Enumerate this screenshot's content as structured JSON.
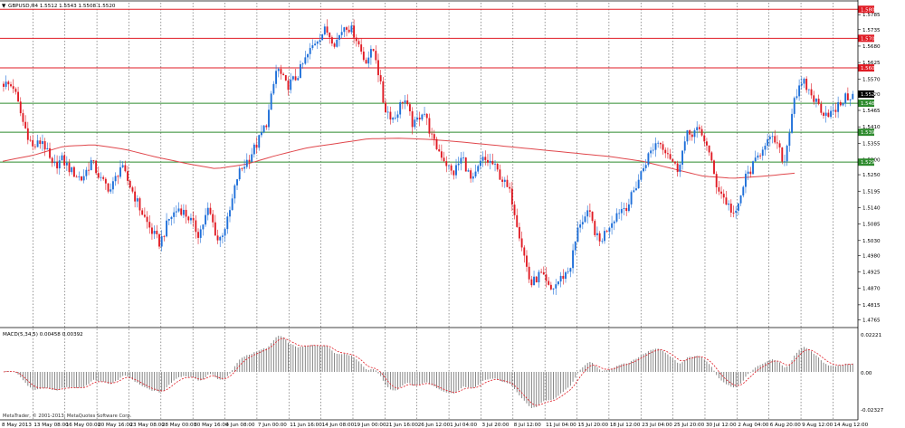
{
  "header": {
    "arrow_glyph": "▼",
    "symbol_info": "GBPUSD,H4  1.5512 1.5543 1.5508 1.5520"
  },
  "macd": {
    "label": "MACD(5,34,5) 0.00458 0.00392",
    "axis_top": "0.02221",
    "axis_zero": "0.00",
    "axis_bottom": "-0.02327"
  },
  "footer": {
    "copyright": "MetaTrader, © 2001-2013, MetaQuotes Software Corp."
  },
  "colors": {
    "bull": "#1e6fd9",
    "bear": "#e01b24",
    "ma": "#e0474c",
    "resistance": "#e01b24",
    "support": "#2e8b2e",
    "grid": "#555555",
    "histogram": "#7a7a7a",
    "signal": "#e01b24"
  },
  "chart_data": {
    "type": "candlestick",
    "symbol": "GBPUSD",
    "timeframe": "H4",
    "last_price": "1.5520",
    "ylim": [
      1.4745,
      1.5825
    ],
    "yticks": [
      "1.5785",
      "1.5735",
      "1.5680",
      "1.5625",
      "1.5570",
      "1.5520",
      "1.5465",
      "1.5410",
      "1.5355",
      "1.5300",
      "1.5250",
      "1.5195",
      "1.5140",
      "1.5085",
      "1.5030",
      "1.4980",
      "1.4925",
      "1.4870",
      "1.4815",
      "1.4765"
    ],
    "xticks": [
      "8 May 2013",
      "13 May 08:00",
      "16 May 00:00",
      "20 May 16:00",
      "23 May 08:00",
      "28 May 00:00",
      "30 May 16:00",
      "4 Jun 08:00",
      "7 Jun 00:00",
      "11 Jun 16:00",
      "14 Jun 08:00",
      "19 Jun 00:00",
      "21 Jun 16:00",
      "26 Jun 12:00",
      "1 Jul 04:00",
      "3 Jul 20:00",
      "8 Jul 12:00",
      "11 Jul 04:00",
      "15 Jul 20:00",
      "18 Jul 12:00",
      "23 Jul 04:00",
      "25 Jul 20:00",
      "30 Jul 12:00",
      "2 Aug 04:00",
      "6 Aug 20:00",
      "9 Aug 12:00",
      "14 Aug 12:00"
    ],
    "horizontal_levels": [
      {
        "price": 1.5803,
        "label": "1.5803",
        "kind": "resistance"
      },
      {
        "price": 1.5706,
        "label": "1.5706",
        "kind": "resistance"
      },
      {
        "price": 1.5607,
        "label": "1.5607",
        "kind": "resistance"
      },
      {
        "price": 1.5489,
        "label": "1.5489",
        "kind": "support"
      },
      {
        "price": 1.5392,
        "label": "1.5392",
        "kind": "support"
      },
      {
        "price": 1.5292,
        "label": "1.5292",
        "kind": "support"
      }
    ],
    "anchors": [
      1.5555,
      1.5545,
      1.5425,
      1.534,
      1.5365,
      1.5275,
      1.53,
      1.526,
      1.5235,
      1.5295,
      1.523,
      1.52,
      1.528,
      1.521,
      1.5135,
      1.507,
      1.502,
      1.5105,
      1.514,
      1.5105,
      1.505,
      1.5135,
      1.5025,
      1.51,
      1.525,
      1.53,
      1.5355,
      1.543,
      1.561,
      1.5545,
      1.5575,
      1.564,
      1.57,
      1.5735,
      1.569,
      1.5755,
      1.572,
      1.563,
      1.567,
      1.5475,
      1.5435,
      1.551,
      1.541,
      1.547,
      1.536,
      1.531,
      1.525,
      1.531,
      1.522,
      1.53,
      1.529,
      1.524,
      1.518,
      1.503,
      1.488,
      1.492,
      1.486,
      1.49,
      1.4935,
      1.509,
      1.512,
      1.502,
      1.508,
      1.513,
      1.515,
      1.523,
      1.531,
      1.5365,
      1.533,
      1.5265,
      1.538,
      1.54,
      1.536,
      1.522,
      1.516,
      1.511,
      1.524,
      1.529,
      1.536,
      1.5365,
      1.529,
      1.551,
      1.5555,
      1.5505,
      1.546,
      1.5455,
      1.55,
      1.552
    ],
    "ma_anchors": [
      1.5295,
      1.5315,
      1.5345,
      1.535,
      1.5335,
      1.531,
      1.5288,
      1.527,
      1.5285,
      1.5315,
      1.534,
      1.5355,
      1.537,
      1.5372,
      1.5368,
      1.536,
      1.535,
      1.534,
      1.533,
      1.532,
      1.531,
      1.5295,
      1.527,
      1.5245,
      1.5238,
      1.5245,
      1.5255
    ]
  }
}
